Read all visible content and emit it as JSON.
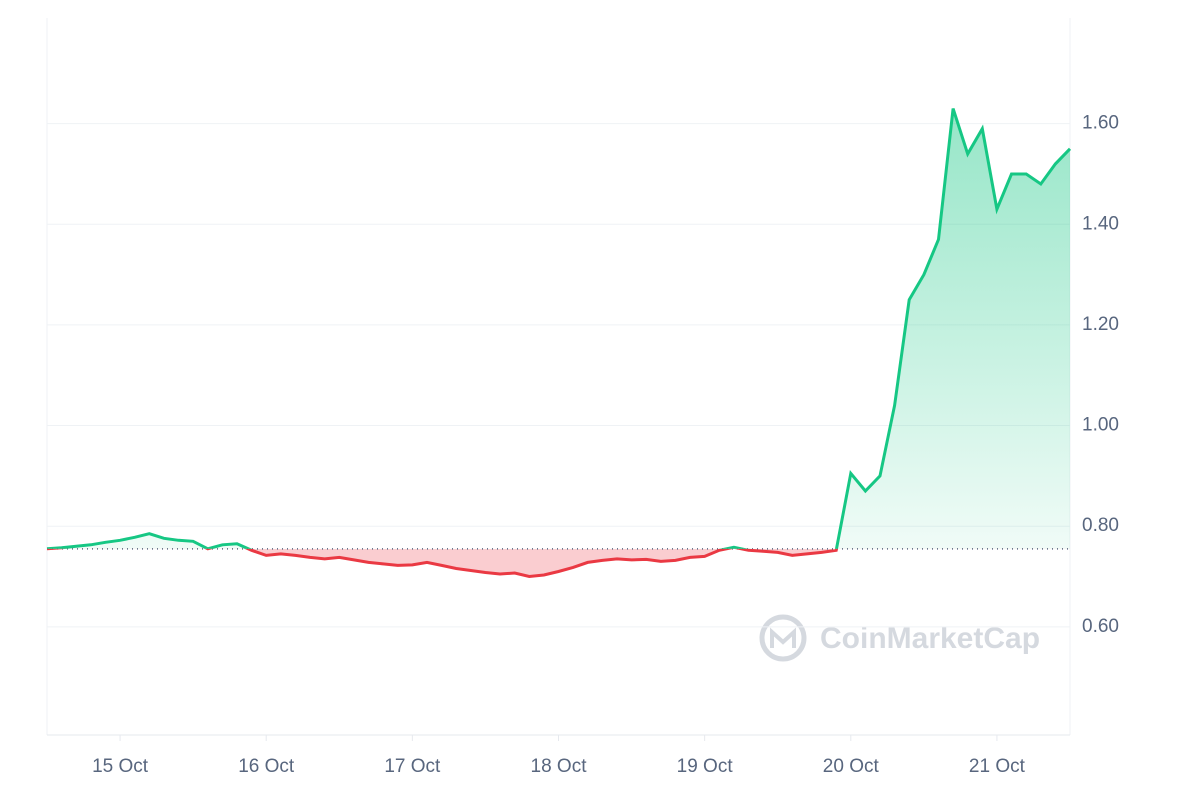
{
  "chart_data": {
    "type": "line",
    "watermark": "CoinMarketCap",
    "x": [
      0,
      0.1,
      0.2,
      0.3,
      0.4,
      0.5,
      0.6,
      0.7,
      0.8,
      0.9,
      1.0,
      1.1,
      1.2,
      1.3,
      1.4,
      1.5,
      1.6,
      1.7,
      1.8,
      1.9,
      2.0,
      2.1,
      2.2,
      2.3,
      2.4,
      2.5,
      2.6,
      2.7,
      2.8,
      2.9,
      3.0,
      3.1,
      3.2,
      3.3,
      3.4,
      3.5,
      3.6,
      3.7,
      3.8,
      3.9,
      4.0,
      4.1,
      4.2,
      4.3,
      4.4,
      4.5,
      4.6,
      4.7,
      4.8,
      4.9,
      5.0,
      5.1,
      5.2,
      5.3,
      5.4,
      5.5,
      5.6,
      5.7,
      5.8,
      5.9,
      6.0,
      6.1,
      6.2,
      6.3,
      6.4,
      6.5,
      6.6,
      6.7,
      6.8,
      6.9,
      7.0
    ],
    "series": [
      {
        "name": "Price",
        "color": "#16c784",
        "negative_color": "#ea3943",
        "values": [
          0.755,
          0.757,
          0.76,
          0.763,
          0.768,
          0.772,
          0.778,
          0.785,
          0.776,
          0.772,
          0.77,
          0.755,
          0.763,
          0.765,
          0.752,
          0.742,
          0.745,
          0.742,
          0.738,
          0.735,
          0.738,
          0.733,
          0.728,
          0.725,
          0.722,
          0.723,
          0.728,
          0.722,
          0.716,
          0.712,
          0.708,
          0.705,
          0.707,
          0.7,
          0.703,
          0.71,
          0.718,
          0.728,
          0.732,
          0.735,
          0.733,
          0.734,
          0.73,
          0.732,
          0.738,
          0.74,
          0.752,
          0.758,
          0.752,
          0.75,
          0.748,
          0.742,
          0.745,
          0.748,
          0.752,
          0.905,
          0.87,
          0.9,
          1.04,
          1.25,
          1.3,
          1.37,
          1.63,
          1.54,
          1.59,
          1.43,
          1.5,
          1.5,
          1.48,
          1.52,
          1.55
        ]
      }
    ],
    "baseline": 0.755,
    "xlim": [
      0,
      7
    ],
    "xticks": [
      {
        "value": 0.5,
        "label": "15 Oct"
      },
      {
        "value": 1.5,
        "label": "16 Oct"
      },
      {
        "value": 2.5,
        "label": "17 Oct"
      },
      {
        "value": 3.5,
        "label": "18 Oct"
      },
      {
        "value": 4.5,
        "label": "19 Oct"
      },
      {
        "value": 5.5,
        "label": "20 Oct"
      },
      {
        "value": 6.5,
        "label": "21 Oct"
      }
    ],
    "ylim": [
      0.385,
      1.81
    ],
    "yticks": [
      {
        "value": 0.6,
        "label": "0.60"
      },
      {
        "value": 0.8,
        "label": "0.80"
      },
      {
        "value": 1.0,
        "label": "1.00"
      },
      {
        "value": 1.2,
        "label": "1.20"
      },
      {
        "value": 1.4,
        "label": "1.40"
      },
      {
        "value": 1.6,
        "label": "1.60"
      }
    ],
    "grid": true
  }
}
